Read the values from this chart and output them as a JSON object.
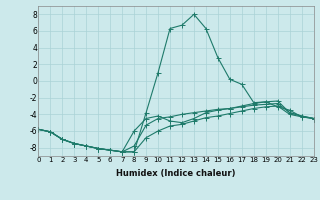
{
  "xlabel": "Humidex (Indice chaleur)",
  "bg_color": "#cce9eb",
  "grid_color": "#aad3d6",
  "line_color": "#1e7a6a",
  "ylim": [
    -9,
    9
  ],
  "xlim": [
    0,
    23
  ],
  "yticks": [
    -8,
    -6,
    -4,
    -2,
    0,
    2,
    4,
    6,
    8
  ],
  "xticks": [
    0,
    1,
    2,
    3,
    4,
    5,
    6,
    7,
    8,
    9,
    10,
    11,
    12,
    13,
    14,
    15,
    16,
    17,
    18,
    19,
    20,
    21,
    22,
    23
  ],
  "series": [
    [
      -5.8,
      -6.1,
      -7.0,
      -7.5,
      -7.8,
      -8.1,
      -8.3,
      -8.5,
      -8.5,
      -3.8,
      1.0,
      6.3,
      6.7,
      8.0,
      6.3,
      2.8,
      0.2,
      -0.4,
      -2.6,
      -2.5,
      -3.1,
      -3.5,
      -4.3,
      -4.5
    ],
    [
      -5.8,
      -6.1,
      -7.0,
      -7.5,
      -7.8,
      -8.1,
      -8.3,
      -8.5,
      -6.0,
      -4.5,
      -4.2,
      -4.8,
      -5.0,
      -4.5,
      -3.8,
      -3.5,
      -3.3,
      -3.0,
      -2.7,
      -2.5,
      -2.4,
      -3.8,
      -4.2,
      -4.5
    ],
    [
      -5.8,
      -6.1,
      -7.0,
      -7.5,
      -7.8,
      -8.1,
      -8.3,
      -8.5,
      -7.8,
      -5.3,
      -4.5,
      -4.3,
      -4.0,
      -3.8,
      -3.6,
      -3.4,
      -3.3,
      -3.1,
      -2.9,
      -2.8,
      -2.7,
      -3.8,
      -4.2,
      -4.5
    ],
    [
      -5.8,
      -6.1,
      -7.0,
      -7.5,
      -7.8,
      -8.1,
      -8.3,
      -8.5,
      -8.5,
      -6.8,
      -6.0,
      -5.4,
      -5.2,
      -4.8,
      -4.4,
      -4.2,
      -3.9,
      -3.6,
      -3.3,
      -3.1,
      -3.0,
      -4.0,
      -4.3,
      -4.5
    ]
  ],
  "markersize": 1.8,
  "linewidth": 0.8,
  "ytick_fontsize": 5.5,
  "xtick_fontsize": 5.0,
  "xlabel_fontsize": 6.0
}
